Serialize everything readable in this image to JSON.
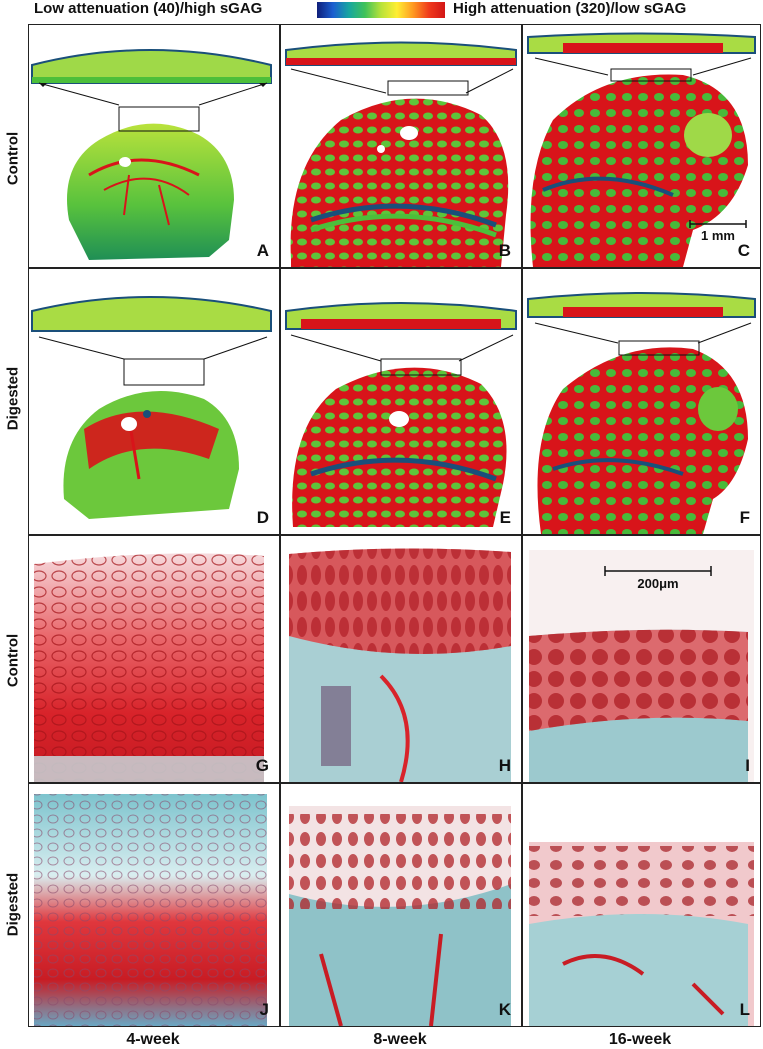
{
  "legend": {
    "left_label": "Low attenuation (40)/high sGAG",
    "right_label": "High attenuation (320)/low sGAG",
    "gradient": [
      "#0f1f7a",
      "#1c5fd0",
      "#17a6a0",
      "#3fc25a",
      "#b8e23a",
      "#ffee33",
      "#ff9a22",
      "#f03a1c",
      "#d21616"
    ]
  },
  "rows": [
    {
      "label": "Control"
    },
    {
      "label": "Digested"
    },
    {
      "label": "Control"
    },
    {
      "label": "Digested"
    }
  ],
  "columns": [
    {
      "label": "4-week"
    },
    {
      "label": "8-week"
    },
    {
      "label": "16-week"
    }
  ],
  "panels": {
    "A": "A",
    "B": "B",
    "C": "C",
    "D": "D",
    "E": "E",
    "F": "F",
    "G": "G",
    "H": "H",
    "I": "I",
    "J": "J",
    "K": "K",
    "L": "L"
  },
  "scale_bars": {
    "ct": "1 mm",
    "histology": "200μm"
  },
  "colors": {
    "ct_red": "#d8141a",
    "ct_green": "#4cbf3a",
    "ct_yellow": "#d9e83a",
    "ct_blue": "#1a4f7a",
    "histo_red": "#d23a3f",
    "histo_pink": "#f1b8bc",
    "histo_teal": "#8fc6cc"
  }
}
